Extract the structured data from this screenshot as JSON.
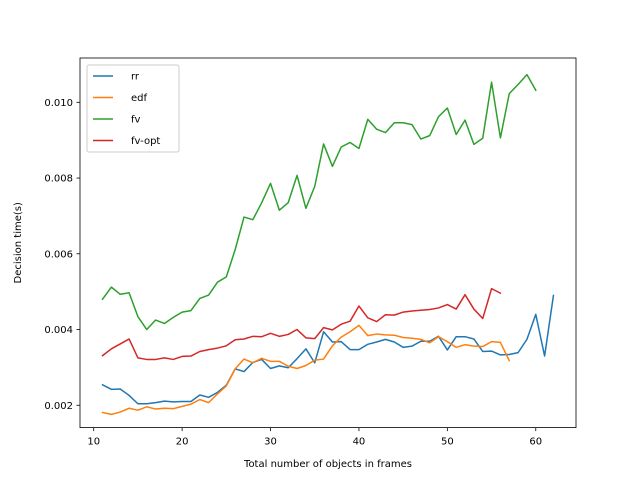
{
  "chart_data": {
    "type": "line",
    "title": "",
    "xlabel": "Total number of objects in frames",
    "ylabel": "Decision time(s)",
    "xlim": [
      8.45,
      64.55
    ],
    "ylim": [
      0.00141,
      0.01117
    ],
    "xticks": [
      10,
      20,
      30,
      40,
      50,
      60
    ],
    "yticks": [
      0.002,
      0.004,
      0.006,
      0.008,
      0.01
    ],
    "ytick_labels": [
      "0.002",
      "0.004",
      "0.006",
      "0.008",
      "0.010"
    ],
    "grid": false,
    "legend_position": "top-left",
    "series": [
      {
        "name": "rr",
        "color": "#1f77b4",
        "x": [
          11,
          12,
          13,
          14,
          15,
          16,
          17,
          18,
          19,
          20,
          21,
          22,
          23,
          24,
          25,
          26,
          27,
          28,
          29,
          30,
          31,
          32,
          33,
          34,
          35,
          36,
          37,
          38,
          39,
          40,
          41,
          42,
          43,
          44,
          45,
          46,
          47,
          48,
          49,
          50,
          51,
          52,
          53,
          54,
          55,
          56,
          57,
          58,
          59,
          60,
          61,
          62
        ],
        "y": [
          0.00254,
          0.00242,
          0.00243,
          0.00226,
          0.00204,
          0.00204,
          0.00207,
          0.00211,
          0.00209,
          0.0021,
          0.0021,
          0.00227,
          0.00221,
          0.00234,
          0.00253,
          0.00296,
          0.00289,
          0.00313,
          0.00321,
          0.00297,
          0.00304,
          0.00299,
          0.00323,
          0.00349,
          0.00312,
          0.00394,
          0.00367,
          0.00368,
          0.00347,
          0.00347,
          0.00361,
          0.00367,
          0.00374,
          0.00367,
          0.00353,
          0.00356,
          0.00369,
          0.00369,
          0.00382,
          0.00346,
          0.00381,
          0.00381,
          0.00375,
          0.00342,
          0.00343,
          0.00333,
          0.00334,
          0.00339,
          0.00374,
          0.0044,
          0.0033,
          0.0049
        ]
      },
      {
        "name": "edf",
        "color": "#ff7f0e",
        "x": [
          11,
          12,
          13,
          14,
          15,
          16,
          17,
          18,
          19,
          20,
          21,
          22,
          23,
          24,
          25,
          26,
          27,
          28,
          29,
          30,
          31,
          32,
          33,
          34,
          35,
          36,
          37,
          38,
          39,
          40,
          41,
          42,
          43,
          44,
          45,
          46,
          47,
          48,
          49,
          50,
          51,
          52,
          53,
          54,
          55,
          56,
          57
        ],
        "y": [
          0.00181,
          0.00176,
          0.00182,
          0.00192,
          0.00187,
          0.00196,
          0.0019,
          0.00192,
          0.00191,
          0.00197,
          0.00203,
          0.00215,
          0.00207,
          0.0023,
          0.00251,
          0.00296,
          0.00322,
          0.00312,
          0.00324,
          0.00316,
          0.00316,
          0.00303,
          0.00297,
          0.00305,
          0.00319,
          0.00322,
          0.00357,
          0.0038,
          0.00394,
          0.00411,
          0.00384,
          0.00388,
          0.00386,
          0.00385,
          0.00379,
          0.00377,
          0.00374,
          0.00365,
          0.00381,
          0.00368,
          0.00353,
          0.0036,
          0.00356,
          0.00355,
          0.00368,
          0.00366,
          0.00318
        ]
      },
      {
        "name": "fv",
        "color": "#2ca02c",
        "x": [
          11,
          12,
          13,
          14,
          15,
          16,
          17,
          18,
          19,
          20,
          21,
          22,
          23,
          24,
          25,
          26,
          27,
          28,
          29,
          30,
          31,
          32,
          33,
          34,
          35,
          36,
          37,
          38,
          39,
          40,
          41,
          42,
          43,
          44,
          45,
          46,
          47,
          48,
          49,
          50,
          51,
          52,
          53,
          54,
          55,
          56,
          57,
          58,
          59,
          60
        ],
        "y": [
          0.0048,
          0.00512,
          0.00493,
          0.00497,
          0.00434,
          0.004,
          0.00425,
          0.00416,
          0.00432,
          0.00446,
          0.0045,
          0.00482,
          0.00491,
          0.00525,
          0.00539,
          0.00611,
          0.00697,
          0.0069,
          0.00735,
          0.00786,
          0.00715,
          0.00735,
          0.00807,
          0.0072,
          0.00778,
          0.0089,
          0.00831,
          0.00882,
          0.00894,
          0.00878,
          0.00955,
          0.00929,
          0.0092,
          0.00946,
          0.00946,
          0.00941,
          0.00903,
          0.00912,
          0.00962,
          0.00985,
          0.00915,
          0.00953,
          0.00889,
          0.00905,
          0.01053,
          0.00906,
          0.01023,
          0.01047,
          0.01073,
          0.01032
        ]
      },
      {
        "name": "fv-opt",
        "color": "#d62728",
        "x": [
          11,
          12,
          13,
          14,
          15,
          16,
          17,
          18,
          19,
          20,
          21,
          22,
          23,
          24,
          25,
          26,
          27,
          28,
          29,
          30,
          31,
          32,
          33,
          34,
          35,
          36,
          37,
          38,
          39,
          40,
          41,
          42,
          43,
          44,
          45,
          46,
          47,
          48,
          49,
          50,
          51,
          52,
          53,
          54,
          55,
          56
        ],
        "y": [
          0.00331,
          0.00349,
          0.00362,
          0.00375,
          0.00325,
          0.00321,
          0.00321,
          0.00325,
          0.00321,
          0.00329,
          0.0033,
          0.00342,
          0.00347,
          0.00351,
          0.00357,
          0.00373,
          0.00375,
          0.00382,
          0.00381,
          0.0039,
          0.00382,
          0.00387,
          0.004,
          0.00378,
          0.00376,
          0.00405,
          0.00399,
          0.00414,
          0.00422,
          0.00462,
          0.00431,
          0.00421,
          0.00439,
          0.00438,
          0.00446,
          0.00449,
          0.00451,
          0.00453,
          0.00457,
          0.00466,
          0.00454,
          0.00492,
          0.00454,
          0.00429,
          0.00508,
          0.00496
        ]
      }
    ]
  }
}
